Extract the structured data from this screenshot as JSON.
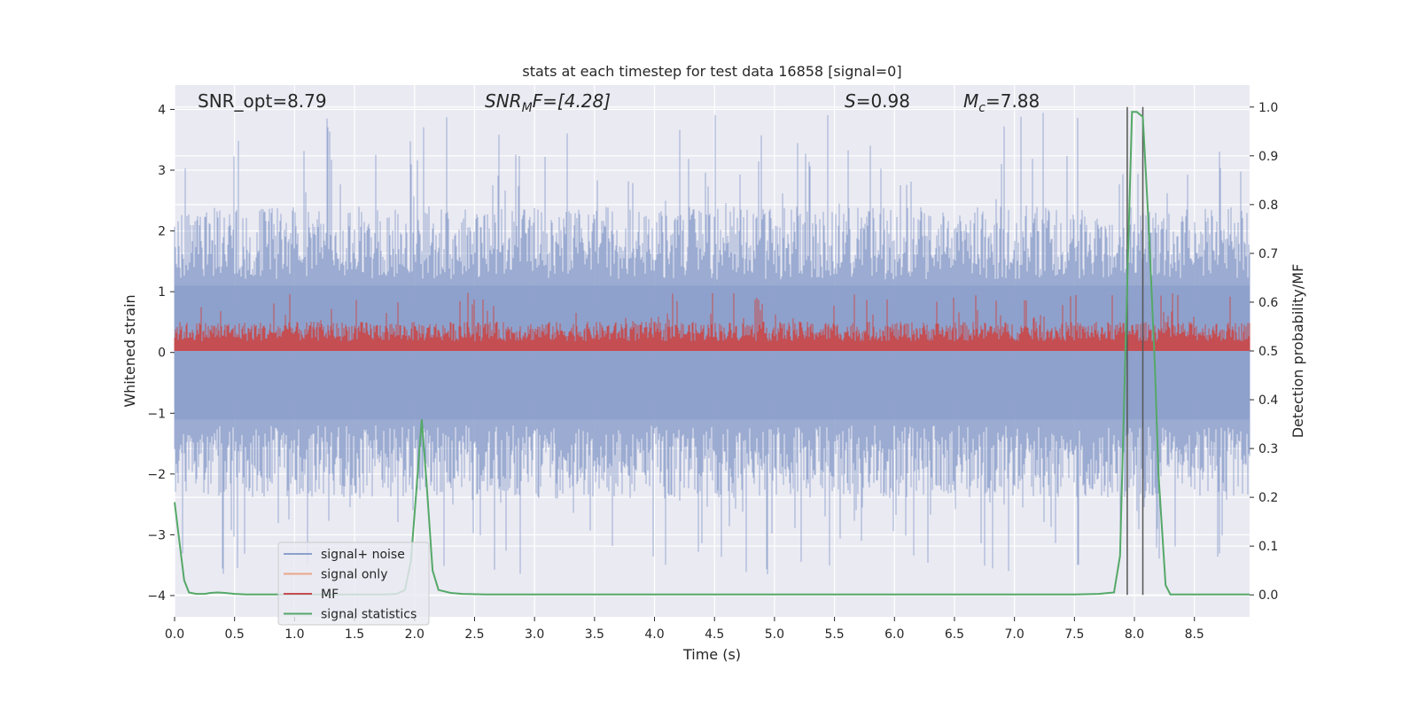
{
  "chart_data": {
    "type": "line",
    "title": "stats at each timestep for test data 16858 [signal=0]",
    "xlabel": "Time (s)",
    "ylabel_left": "Whitened strain",
    "ylabel_right": "Detection probability/MF",
    "xlim": [
      0.0,
      8.96
    ],
    "ylim_left": [
      -4.35,
      4.4
    ],
    "ylim_right": [
      -0.045,
      1.045
    ],
    "x_ticks": [
      "0.0",
      "0.5",
      "1.0",
      "1.5",
      "2.0",
      "2.5",
      "3.0",
      "3.5",
      "4.0",
      "4.5",
      "5.0",
      "5.5",
      "6.0",
      "6.5",
      "7.0",
      "7.5",
      "8.0",
      "8.5"
    ],
    "y_ticks_left": [
      "4",
      "3",
      "2",
      "1",
      "0",
      "−1",
      "−2",
      "−3",
      "−4"
    ],
    "y_ticks_right": [
      "1.0",
      "0.9",
      "0.8",
      "0.7",
      "0.6",
      "0.5",
      "0.4",
      "0.3",
      "0.2",
      "0.1",
      "0.0"
    ],
    "grid": true,
    "legend_position": "lower-left",
    "annotations": {
      "snr_opt": "SNR_opt=8.79",
      "snr_mf_base": "SNR",
      "snr_mf_sub": "M",
      "snr_mf_rest": "F=[4.28]",
      "s_base": "S",
      "s_rest": "=0.98",
      "mc_base": "M",
      "mc_sub": "c",
      "mc_rest": "=7.88"
    },
    "series": [
      {
        "name": "signal+ noise",
        "color": "#8da0cb",
        "description_axis": "left",
        "envelope": {
          "typical_max": 2.2,
          "peak_max": 4.0,
          "typical_min": -2.2,
          "peak_min": -3.65
        }
      },
      {
        "name": "signal only",
        "color": "#e8a58a",
        "axis": "left"
      },
      {
        "name": "MF",
        "color": "#c44e52",
        "axis": "right",
        "envelope": {
          "min": 0.5,
          "typical_max": 0.56,
          "peak_max": 0.62
        }
      },
      {
        "name": "signal statistics",
        "color": "#55a868",
        "axis": "right",
        "x": [
          0.0,
          0.08,
          0.12,
          0.18,
          0.25,
          0.3,
          0.36,
          0.42,
          0.5,
          0.6,
          0.7,
          0.8,
          1.0,
          1.2,
          1.4,
          1.6,
          1.75,
          1.85,
          1.92,
          1.97,
          2.02,
          2.06,
          2.1,
          2.15,
          2.2,
          2.3,
          2.4,
          2.6,
          3.0,
          4.0,
          5.0,
          6.0,
          7.0,
          7.5,
          7.7,
          7.83,
          7.88,
          7.93,
          7.98,
          8.02,
          8.07,
          8.12,
          8.17,
          8.2,
          8.26,
          8.3,
          8.5,
          8.96
        ],
        "y": [
          0.19,
          0.03,
          0.005,
          0.002,
          0.002,
          0.004,
          0.005,
          0.004,
          0.002,
          0.001,
          0.001,
          0.001,
          0.001,
          0.001,
          0.001,
          0.001,
          0.001,
          0.002,
          0.01,
          0.07,
          0.23,
          0.36,
          0.23,
          0.05,
          0.01,
          0.004,
          0.002,
          0.001,
          0.001,
          0.001,
          0.001,
          0.001,
          0.001,
          0.001,
          0.002,
          0.005,
          0.08,
          0.55,
          0.99,
          0.99,
          0.98,
          0.75,
          0.47,
          0.25,
          0.02,
          0.001,
          0.001,
          0.001
        ]
      }
    ],
    "vertical_lines": [
      {
        "x": 7.94,
        "color": "#555555"
      },
      {
        "x": 8.07,
        "color": "#555555"
      }
    ]
  }
}
